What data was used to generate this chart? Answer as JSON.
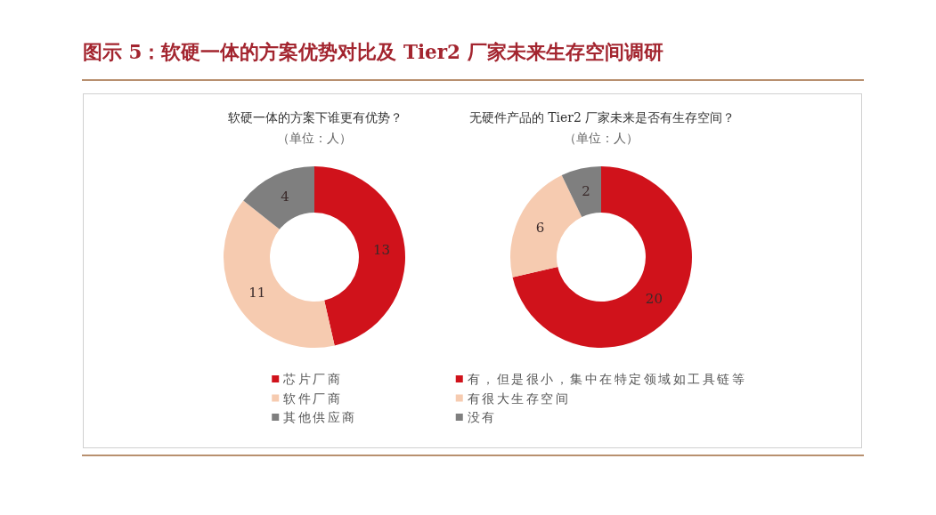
{
  "chart_data": [
    {
      "type": "donut",
      "annotations": [
        "图示 5：软硬一体的方案优势对比及 Tier2 厂家未来生存空间调研"
      ],
      "title": "软硬一体的方案下谁更有优势？",
      "subtitle": "（单位：人）",
      "categories": [
        "芯片厂商",
        "软件厂商",
        "其他供应商"
      ],
      "values": [
        13,
        11,
        4
      ],
      "colors": [
        "#d0121b",
        "#f6cbb0",
        "#7f7f7f"
      ],
      "data_labels": true,
      "legend": "bottom"
    },
    {
      "type": "donut",
      "title": "无硬件产品的 Tier2 厂家未来是否有生存空间？",
      "subtitle": "（单位：人）",
      "categories": [
        "有，但是很小，集中在特定领域如工具链等",
        "有很大生存空间",
        "没有"
      ],
      "values": [
        20,
        6,
        2
      ],
      "colors": [
        "#d0121b",
        "#f6cbb0",
        "#7f7f7f"
      ],
      "data_labels": true,
      "legend": "bottom"
    }
  ]
}
